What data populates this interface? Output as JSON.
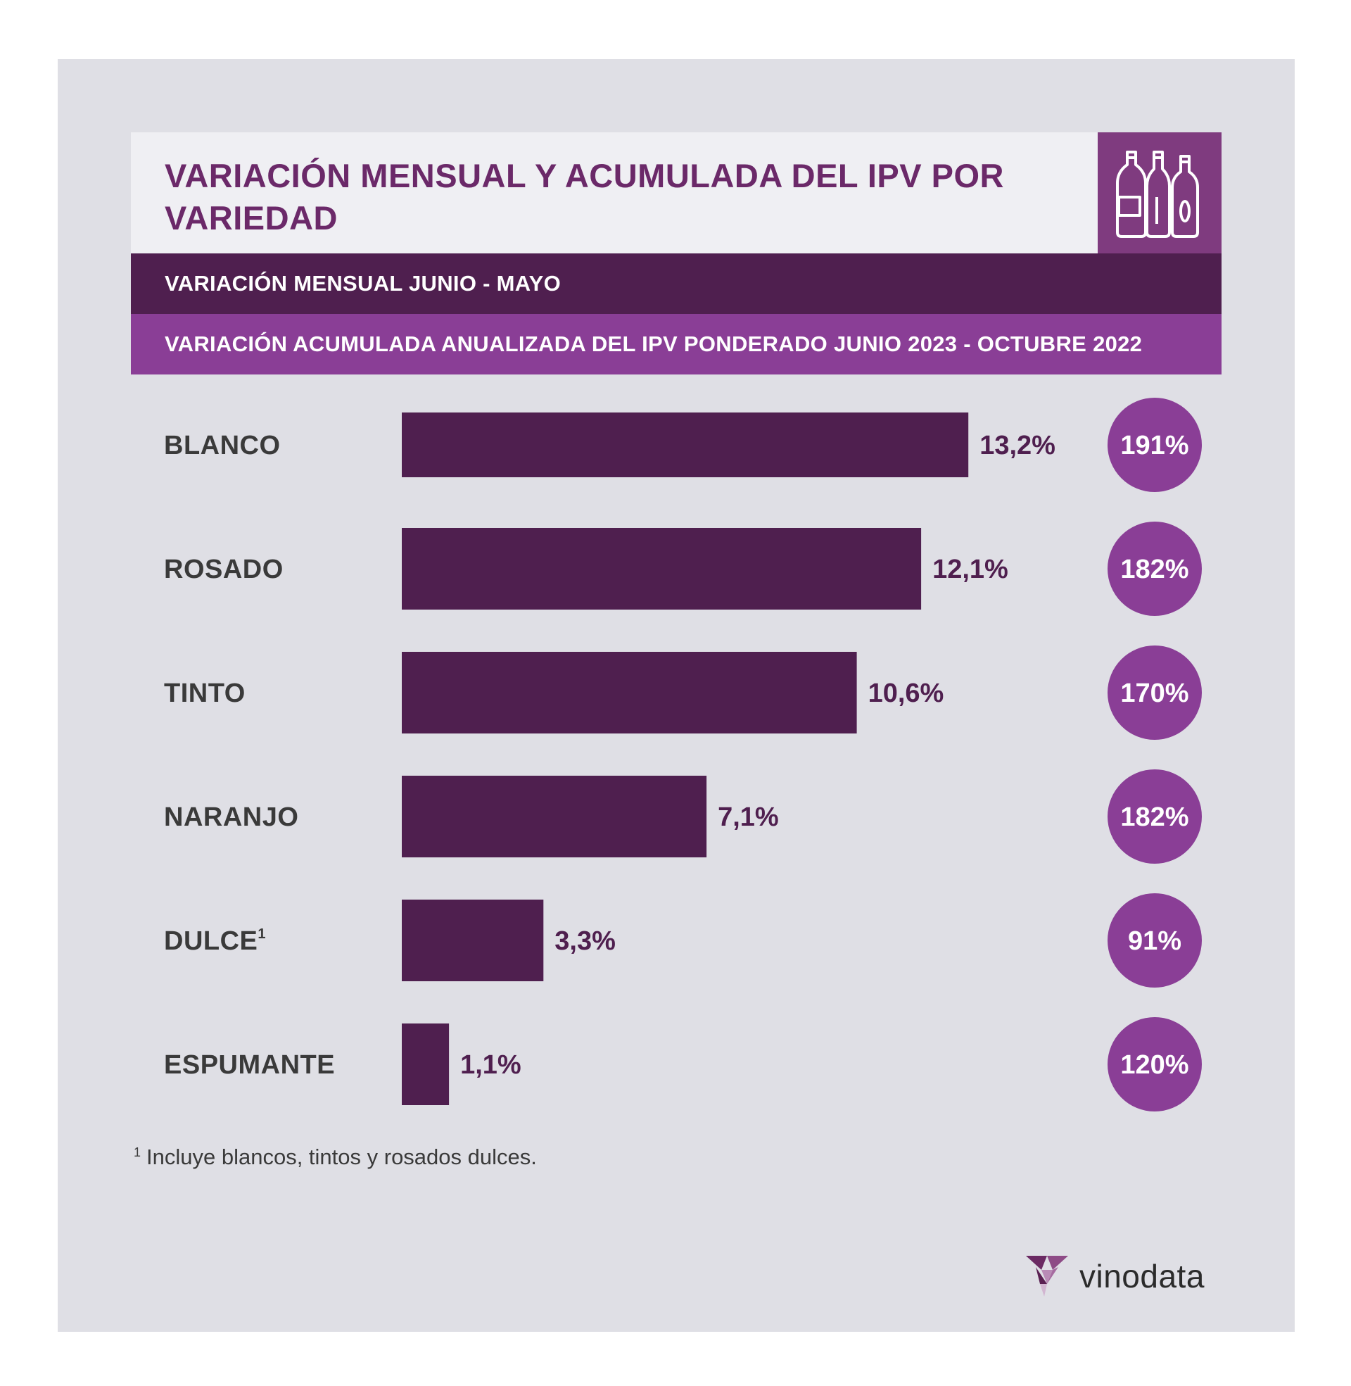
{
  "header": {
    "title": "VARIACIÓN MENSUAL Y ACUMULADA DEL IPV POR VARIEDAD",
    "icon": "wine-bottles-icon"
  },
  "legend": {
    "monthly": "VARIACIÓN MENSUAL JUNIO - MAYO",
    "cumulative": "VARIACIÓN ACUMULADA ANUALIZADA DEL IPV PONDERADO JUNIO 2023 - OCTUBRE 2022"
  },
  "chart_data": {
    "type": "bar",
    "orientation": "horizontal",
    "categories": [
      "BLANCO",
      "ROSADO",
      "TINTO",
      "NARANJO",
      "DULCE",
      "ESPUMANTE"
    ],
    "category_footnote_marks": [
      "",
      "",
      "",
      "",
      "1",
      ""
    ],
    "series": [
      {
        "name": "VARIACIÓN MENSUAL JUNIO - MAYO",
        "values": [
          13.2,
          12.1,
          10.6,
          7.1,
          3.3,
          1.1
        ],
        "labels": [
          "13,2%",
          "12,1%",
          "10,6%",
          "7,1%",
          "3,3%",
          "1,1%"
        ]
      },
      {
        "name": "VARIACIÓN ACUMULADA ANUALIZADA DEL IPV PONDERADO JUNIO 2023 - OCTUBRE 2022",
        "values": [
          191,
          182,
          170,
          182,
          91,
          120
        ],
        "labels": [
          "191%",
          "182%",
          "170%",
          "182%",
          "91%",
          "120%"
        ]
      }
    ],
    "colors": {
      "bar": "#4f1f4f",
      "circle": "#8a3e96",
      "circle_text": "#ffffff",
      "value_text": "#4f1f4f",
      "category_text": "#3a3a3a"
    }
  },
  "footnote": {
    "mark": "1",
    "text": "Incluye blancos, tintos y rosados dulces."
  },
  "brand": {
    "name": "vinodata",
    "logo": "vinodata-logo-icon"
  }
}
